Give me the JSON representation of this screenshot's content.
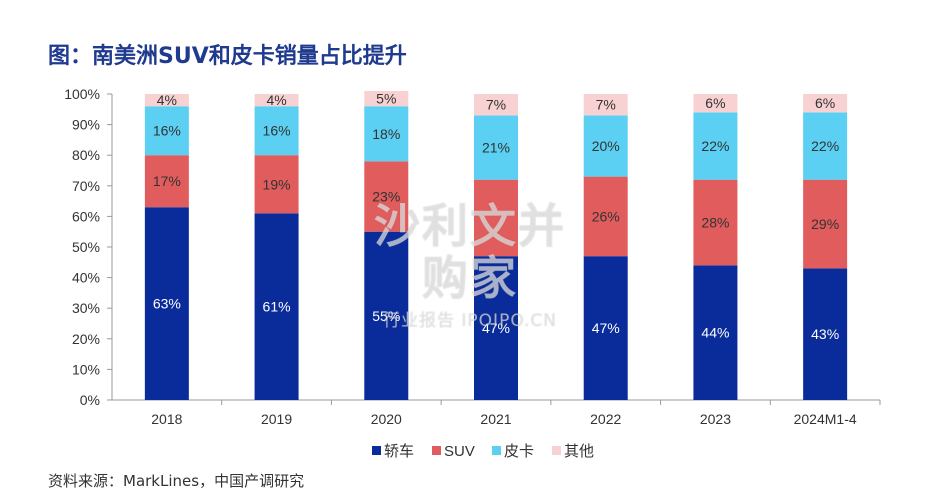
{
  "title": "图：南美洲SUV和皮卡销量占比提升",
  "watermark": {
    "main": "沙利文并购家",
    "sub": "行业报告 IPOIPO.CN"
  },
  "source_text": "资料来源：MarkLines，中国产调研究",
  "chart_data": {
    "type": "bar",
    "stacked": true,
    "title": "图：南美洲SUV和皮卡销量占比提升",
    "categories": [
      "2018",
      "2019",
      "2020",
      "2021",
      "2022",
      "2023",
      "2024M1-4"
    ],
    "series": [
      {
        "name": "轿车",
        "color": "#0A2C9A",
        "label_color": "#FFFFFF",
        "values": [
          63,
          61,
          55,
          47,
          47,
          44,
          43
        ]
      },
      {
        "name": "SUV",
        "color": "#E15C5C",
        "label_color": "#333333",
        "values": [
          17,
          19,
          23,
          25,
          26,
          28,
          29
        ]
      },
      {
        "name": "皮卡",
        "color": "#5BD0F2",
        "label_color": "#333333",
        "values": [
          16,
          16,
          18,
          21,
          20,
          22,
          22
        ]
      },
      {
        "name": "其他",
        "color": "#F8D2D2",
        "label_color": "#333333",
        "values": [
          4,
          4,
          5,
          7,
          7,
          6,
          6
        ]
      }
    ],
    "data_labels": [
      [
        "63%",
        "61%",
        "55%",
        "47%",
        "47%",
        "44%",
        "43%"
      ],
      [
        "17%",
        "19%",
        "23%",
        "",
        "26%",
        "28%",
        "29%"
      ],
      [
        "16%",
        "16%",
        "18%",
        "21%",
        "20%",
        "22%",
        "22%"
      ],
      [
        "4%",
        "4%",
        "5%",
        "7%",
        "7%",
        "6%",
        "6%"
      ]
    ],
    "yticks": [
      "0%",
      "10%",
      "20%",
      "30%",
      "40%",
      "50%",
      "60%",
      "70%",
      "80%",
      "90%",
      "100%"
    ],
    "ylim": [
      0,
      100
    ],
    "grid": false,
    "legend": "bottom"
  }
}
